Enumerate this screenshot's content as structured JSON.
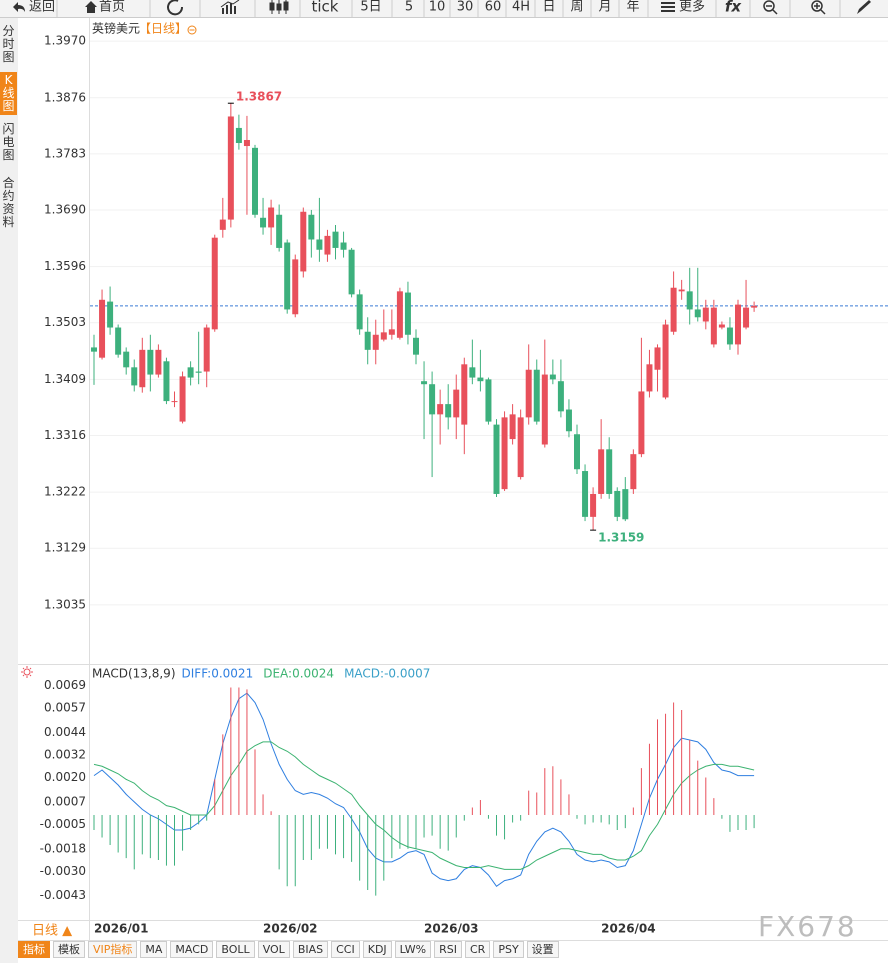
{
  "toolbar": [
    "返回",
    "首页",
    "tick",
    "5日",
    "5",
    "10",
    "30",
    "60",
    "4H",
    "日",
    "周",
    "月",
    "年",
    "更多",
    "fx"
  ],
  "sidebar": [
    "分时图",
    "K线图",
    "闪电图",
    "合约资料"
  ],
  "period": "日线 ▲",
  "watermark": "FX678",
  "indicator_tabs": [
    "指标",
    "模板",
    "VIP指标",
    "MA",
    "MACD",
    "BOLL",
    "VOL",
    "BIAS",
    "CCI",
    "KDJ",
    "LW%",
    "RSI",
    "CR",
    "PSY",
    "设置"
  ],
  "chart_data": [
    {
      "type": "candlestick",
      "title": "英镑美元",
      "subtitle": "【日线】",
      "categories": [
        "2026/01",
        null,
        null,
        null,
        null,
        null,
        null,
        null,
        null,
        null,
        null,
        null,
        null,
        null,
        null,
        null,
        null,
        null,
        null,
        null,
        null,
        "2026/02",
        null,
        null,
        null,
        null,
        null,
        null,
        null,
        null,
        null,
        null,
        null,
        null,
        null,
        null,
        null,
        null,
        null,
        null,
        null,
        "2026/03",
        null,
        null,
        null,
        null,
        null,
        null,
        null,
        null,
        null,
        null,
        null,
        null,
        null,
        null,
        null,
        null,
        null,
        null,
        null,
        null,
        null,
        "2026/04",
        null,
        null,
        null,
        null,
        null,
        null,
        null,
        null,
        null,
        null,
        null,
        null,
        null,
        null,
        null,
        null,
        null,
        null,
        null
      ],
      "open": [
        1.3462,
        1.3445,
        1.3538,
        1.3495,
        1.3455,
        1.3429,
        1.3396,
        1.3458,
        1.3417,
        1.3439,
        1.3373,
        1.3339,
        1.3429,
        1.3422,
        1.3422,
        1.3492,
        1.3657,
        1.3674,
        1.3826,
        1.3796,
        1.3793,
        1.3677,
        1.3661,
        1.3682,
        1.3636,
        1.3517,
        1.3588,
        1.3682,
        1.3641,
        1.3616,
        1.3654,
        1.3636,
        1.3624,
        1.355,
        1.3488,
        1.3458,
        1.3475,
        1.3483,
        1.3478,
        1.3553,
        1.3478,
        1.3406,
        1.3401,
        1.3351,
        1.3368,
        1.3346,
        1.3334,
        1.3429,
        1.3412,
        1.3409,
        1.3334,
        1.3227,
        1.331,
        1.3247,
        1.3346,
        1.3425,
        1.3301,
        1.3417,
        1.3406,
        1.3359,
        1.3318,
        1.3257,
        1.3181,
        1.3219,
        1.3293,
        1.3224,
        1.3227,
        1.3227,
        1.3285,
        1.3389,
        1.3425,
        1.3379,
        1.3488,
        1.3555,
        1.3555,
        1.3525,
        1.3505,
        1.3467,
        1.3495,
        1.3495,
        1.3467,
        1.3495,
        1.3528
      ],
      "high": [
        1.3483,
        1.3558,
        1.3563,
        1.35,
        1.3462,
        1.3442,
        1.3478,
        1.3483,
        1.3467,
        1.3445,
        1.3389,
        1.3422,
        1.3439,
        1.3488,
        1.35,
        1.3649,
        1.371,
        1.3867,
        1.3848,
        1.3846,
        1.3798,
        1.371,
        1.3707,
        1.3699,
        1.3641,
        1.3616,
        1.3694,
        1.369,
        1.371,
        1.3657,
        1.3665,
        1.3654,
        1.3627,
        1.3558,
        1.3512,
        1.3508,
        1.3525,
        1.3525,
        1.3561,
        1.3571,
        1.3492,
        1.3439,
        1.3422,
        1.3392,
        1.3401,
        1.3417,
        1.3445,
        1.3475,
        1.3458,
        1.3412,
        1.3343,
        1.3356,
        1.3368,
        1.3359,
        1.3467,
        1.3442,
        1.3475,
        1.3442,
        1.3442,
        1.3376,
        1.3334,
        1.3268,
        1.323,
        1.3343,
        1.3313,
        1.323,
        1.3247,
        1.3293,
        1.3478,
        1.3458,
        1.3467,
        1.3508,
        1.3588,
        1.3574,
        1.3594,
        1.3594,
        1.3541,
        1.3541,
        1.3505,
        1.3512,
        1.3541,
        1.3574,
        1.3538
      ],
      "low": [
        1.34,
        1.3442,
        1.3483,
        1.3445,
        1.3417,
        1.3389,
        1.3387,
        1.3389,
        1.3412,
        1.3368,
        1.3363,
        1.3336,
        1.3399,
        1.3401,
        1.3396,
        1.3488,
        1.3644,
        1.3661,
        1.379,
        1.3682,
        1.3677,
        1.3649,
        1.3632,
        1.3621,
        1.3518,
        1.3512,
        1.3578,
        1.3611,
        1.3604,
        1.3604,
        1.3608,
        1.3611,
        1.3545,
        1.3483,
        1.3434,
        1.3434,
        1.3472,
        1.3475,
        1.3475,
        1.3467,
        1.3434,
        1.331,
        1.3247,
        1.3301,
        1.3326,
        1.331,
        1.3285,
        1.3401,
        1.3389,
        1.3334,
        1.3214,
        1.3224,
        1.3301,
        1.3243,
        1.3334,
        1.3334,
        1.3296,
        1.3401,
        1.3346,
        1.3313,
        1.3252,
        1.3174,
        1.3159,
        1.3211,
        1.3211,
        1.3174,
        1.3174,
        1.3219,
        1.328,
        1.3379,
        1.3389,
        1.3376,
        1.3483,
        1.3541,
        1.35,
        1.3505,
        1.3492,
        1.3462,
        1.3492,
        1.3458,
        1.345,
        1.3492,
        1.3521
      ],
      "close": [
        1.3455,
        1.3541,
        1.3495,
        1.345,
        1.3429,
        1.3399,
        1.3458,
        1.3417,
        1.3458,
        1.3373,
        1.3373,
        1.3414,
        1.3412,
        1.342,
        1.3495,
        1.3644,
        1.3674,
        1.3845,
        1.3801,
        1.3806,
        1.3682,
        1.3661,
        1.3694,
        1.3627,
        1.3525,
        1.3608,
        1.3687,
        1.3641,
        1.3624,
        1.3647,
        1.3627,
        1.3624,
        1.355,
        1.3492,
        1.3458,
        1.3483,
        1.3487,
        1.3492,
        1.3555,
        1.3483,
        1.345,
        1.3401,
        1.3351,
        1.3368,
        1.3346,
        1.3392,
        1.3434,
        1.3412,
        1.3406,
        1.3339,
        1.3219,
        1.3346,
        1.3351,
        1.3346,
        1.3425,
        1.3339,
        1.3417,
        1.3409,
        1.3356,
        1.3323,
        1.326,
        1.3181,
        1.3219,
        1.3293,
        1.3219,
        1.3181,
        1.3177,
        1.3285,
        1.3389,
        1.3434,
        1.3462,
        1.35,
        1.3561,
        1.3558,
        1.3525,
        1.3512,
        1.3528,
        1.3528,
        1.35,
        1.3467,
        1.3533,
        1.3528,
        1.3531
      ],
      "up_color": "#e8505b",
      "down_color": "#3db07d",
      "ylim": [
        1.2937,
        1.4005
      ],
      "yticks": [
        {
          "value": 1.397,
          "label": "1.3970"
        },
        1.3876,
        1.3783,
        {
          "value": 1.369,
          "label": "1.3690"
        },
        1.3596,
        1.3503,
        1.3409,
        1.3316,
        1.3222,
        1.3129,
        1.3035
      ],
      "grid": true,
      "last_price_line": true,
      "last_price_color": "#3a7bd5"
    },
    {
      "type": "macd",
      "title": "MACD(13,8,9)",
      "series": [
        {
          "name": "DIFF:0.0021",
          "type": "line",
          "color": "#2f7fe0",
          "values": [
            0.0021,
            0.0024,
            0.002,
            0.0016,
            0.0011,
            0.0007,
            0.0003,
            0.0,
            -0.0002,
            -0.0005,
            -0.0008,
            -0.0008,
            -0.0007,
            -0.0004,
            0.0,
            0.0019,
            0.0038,
            0.0052,
            0.0062,
            0.0065,
            0.006,
            0.0051,
            0.0038,
            0.0027,
            0.0019,
            0.0013,
            0.0011,
            0.0012,
            0.0011,
            0.0009,
            0.0006,
            0.0004,
            -0.0002,
            -0.0009,
            -0.0018,
            -0.0023,
            -0.0025,
            -0.0025,
            -0.0023,
            -0.002,
            -0.0019,
            -0.0021,
            -0.0031,
            -0.0034,
            -0.0035,
            -0.0034,
            -0.0029,
            -0.0027,
            -0.0028,
            -0.0032,
            -0.0038,
            -0.0035,
            -0.0034,
            -0.0032,
            -0.0021,
            -0.0014,
            -0.0009,
            -0.0007,
            -0.0009,
            -0.0014,
            -0.0021,
            -0.0024,
            -0.0025,
            -0.0024,
            -0.0025,
            -0.0028,
            -0.0027,
            -0.0019,
            -0.0005,
            0.0009,
            0.0019,
            0.0027,
            0.0036,
            0.0041,
            0.004,
            0.0039,
            0.0035,
            0.0028,
            0.0024,
            0.0023,
            0.0021,
            0.0021,
            0.0021
          ]
        },
        {
          "name": "DEA:0.0024",
          "type": "line",
          "color": "#3cb371",
          "values": [
            0.0027,
            0.0026,
            0.0024,
            0.0022,
            0.0019,
            0.0017,
            0.0013,
            0.001,
            0.0008,
            0.0005,
            0.0004,
            0.0002,
            0.0,
            0.0,
            0.0,
            0.0005,
            0.0013,
            0.0021,
            0.0027,
            0.0034,
            0.0037,
            0.0039,
            0.0039,
            0.0036,
            0.0034,
            0.0031,
            0.0027,
            0.0024,
            0.0021,
            0.0019,
            0.0017,
            0.0014,
            0.0011,
            0.0005,
            0.0,
            -0.0005,
            -0.0008,
            -0.0012,
            -0.0015,
            -0.0017,
            -0.0018,
            -0.0019,
            -0.002,
            -0.0023,
            -0.0025,
            -0.0027,
            -0.0028,
            -0.0028,
            -0.0028,
            -0.0027,
            -0.0028,
            -0.0029,
            -0.0029,
            -0.0029,
            -0.0027,
            -0.0024,
            -0.0022,
            -0.002,
            -0.0018,
            -0.0018,
            -0.0019,
            -0.002,
            -0.0021,
            -0.0021,
            -0.0023,
            -0.0024,
            -0.0024,
            -0.0022,
            -0.0019,
            -0.0011,
            -0.0005,
            0.0003,
            0.0011,
            0.0017,
            0.0021,
            0.0024,
            0.0026,
            0.0027,
            0.0027,
            0.0026,
            0.0026,
            0.0025,
            0.0024
          ]
        },
        {
          "name": "MACD:-0.0007",
          "type": "bar",
          "color": "#3aa0c8",
          "values": [
            -0.0008,
            -0.0012,
            -0.0016,
            -0.002,
            -0.0023,
            -0.0029,
            -0.0021,
            -0.0023,
            -0.0024,
            -0.0027,
            -0.0027,
            -0.0019,
            -0.0008,
            -0.0005,
            -0.0003,
            0.0019,
            0.0043,
            0.0068,
            0.0068,
            0.0067,
            0.0035,
            0.0011,
            0.0002,
            -0.0029,
            -0.0038,
            -0.0038,
            -0.0024,
            -0.0024,
            -0.0018,
            -0.0018,
            -0.0021,
            -0.0023,
            -0.0025,
            -0.0035,
            -0.004,
            -0.0043,
            -0.0035,
            -0.0023,
            -0.0018,
            -0.0018,
            -0.0018,
            -0.0012,
            -0.0011,
            -0.0018,
            -0.0019,
            -0.0012,
            -0.0003,
            0.0004,
            0.0008,
            -0.0002,
            -0.0011,
            -0.0013,
            -0.0004,
            -0.0003,
            0.0013,
            0.0012,
            0.0025,
            0.0026,
            0.0019,
            0.0011,
            -0.0002,
            -0.0005,
            -0.0004,
            -0.0004,
            -0.0005,
            -0.0008,
            -0.0007,
            0.0004,
            0.0025,
            0.0038,
            0.0051,
            0.0054,
            0.006,
            0.0056,
            0.004,
            0.0029,
            0.002,
            0.0009,
            -0.0002,
            -0.0009,
            -0.0008,
            -0.0008,
            -0.0007
          ]
        }
      ],
      "up_color": "#e8505b",
      "down_color": "#3db07d",
      "ylim": [
        -0.0056,
        0.008
      ],
      "yticks": [
        0.0069,
        0.0057,
        0.0044,
        0.0032,
        {
          "value": 0.002,
          "label": "0.0020"
        },
        0.0007,
        -0.0005,
        -0.0018,
        {
          "value": -0.003,
          "label": "-0.0030"
        },
        -0.0043
      ],
      "grid": false
    }
  ]
}
